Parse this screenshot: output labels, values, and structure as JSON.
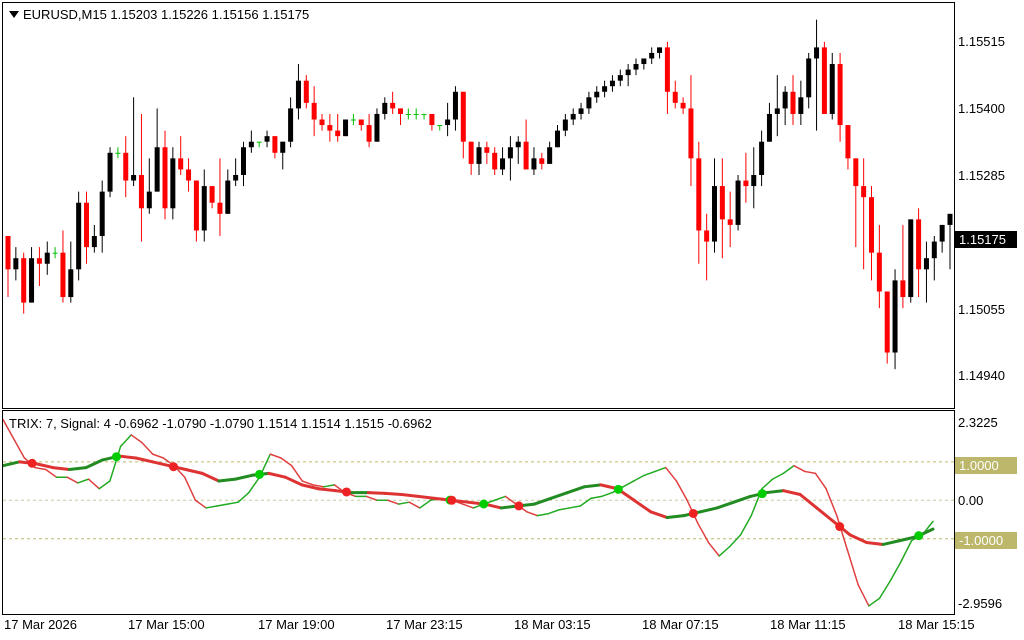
{
  "chart_window": {
    "symbol_info": "EURUSD,M15  1.15203 1.15226 1.15156 1.15175",
    "price_axis": [
      "1.15515",
      "1.15400",
      "1.15285",
      "1.15055",
      "1.14940"
    ],
    "current_price": "1.15175",
    "indicator_info": "TRIX: 7, Signal: 4 -0.6962 -1.0790 -1.0790 1.1514 1.1514 1.1515 -0.6962",
    "indicator_axis": {
      "top": "2.3225",
      "zero": "0.00",
      "bottom": "-2.9596"
    },
    "levels": [
      "1.0000",
      "-1.0000"
    ],
    "time_axis": [
      "17 Mar 2026",
      "17 Mar 15:00",
      "17 Mar 19:00",
      "17 Mar 23:15",
      "18 Mar 03:15",
      "18 Mar 07:15",
      "18 Mar 11:15",
      "18 Mar 15:15"
    ]
  },
  "colors": {
    "bull_candle": "#000000",
    "bear_candle": "#ff0000",
    "doji_candle": "#00c000",
    "trix_up": "#22aa22",
    "trix_down": "#e04040",
    "signal_up": "#228b22",
    "signal_down": "#dd3333",
    "cross_up_dot": "#00cc00",
    "cross_down_dot": "#ee2222",
    "level_line": "#bdb76b"
  },
  "chart_data": {
    "type": "candlestick",
    "symbol": "EURUSD",
    "timeframe": "M15",
    "ylim": [
      1.1485,
      1.1558
    ],
    "candles": [
      [
        1.1516,
        1.1516,
        1.1505,
        1.151
      ],
      [
        1.151,
        1.1514,
        1.1508,
        1.1512
      ],
      [
        1.1512,
        1.1513,
        1.1502,
        1.1504
      ],
      [
        1.1504,
        1.1514,
        1.1504,
        1.1512
      ],
      [
        1.1512,
        1.1514,
        1.1507,
        1.1511
      ],
      [
        1.1511,
        1.1515,
        1.1509,
        1.1513
      ],
      [
        1.1513,
        1.1514,
        1.1512,
        1.1513
      ],
      [
        1.1513,
        1.1517,
        1.1504,
        1.1505
      ],
      [
        1.1505,
        1.1515,
        1.1504,
        1.151
      ],
      [
        1.151,
        1.1524,
        1.1508,
        1.1522
      ],
      [
        1.1522,
        1.1524,
        1.1511,
        1.1514
      ],
      [
        1.1514,
        1.1518,
        1.1513,
        1.1516
      ],
      [
        1.1516,
        1.1526,
        1.1513,
        1.1524
      ],
      [
        1.1524,
        1.1532,
        1.1523,
        1.1531
      ],
      [
        1.1531,
        1.1532,
        1.153,
        1.1531
      ],
      [
        1.1531,
        1.1534,
        1.1523,
        1.1526
      ],
      [
        1.1526,
        1.1541,
        1.1525,
        1.1527
      ],
      [
        1.1527,
        1.1538,
        1.1515,
        1.1521
      ],
      [
        1.1521,
        1.153,
        1.152,
        1.1524
      ],
      [
        1.1524,
        1.1539,
        1.1524,
        1.1532
      ],
      [
        1.1532,
        1.1535,
        1.1519,
        1.1521
      ],
      [
        1.1521,
        1.1532,
        1.1519,
        1.153
      ],
      [
        1.153,
        1.1534,
        1.1527,
        1.1528
      ],
      [
        1.1528,
        1.153,
        1.1524,
        1.1526
      ],
      [
        1.1526,
        1.1526,
        1.1515,
        1.1517
      ],
      [
        1.1517,
        1.1528,
        1.1515,
        1.1525
      ],
      [
        1.1525,
        1.1525,
        1.1521,
        1.1522
      ],
      [
        1.1522,
        1.153,
        1.1516,
        1.152
      ],
      [
        1.152,
        1.1528,
        1.152,
        1.1526
      ],
      [
        1.1526,
        1.153,
        1.1525,
        1.1527
      ],
      [
        1.1527,
        1.1533,
        1.1525,
        1.1532
      ],
      [
        1.1532,
        1.1535,
        1.1531,
        1.1533
      ],
      [
        1.1533,
        1.1533,
        1.1532,
        1.1533
      ],
      [
        1.1533,
        1.1535,
        1.1532,
        1.1534
      ],
      [
        1.1534,
        1.1534,
        1.153,
        1.1531
      ],
      [
        1.1531,
        1.1533,
        1.1528,
        1.1533
      ],
      [
        1.1533,
        1.1541,
        1.1532,
        1.1539
      ],
      [
        1.1539,
        1.1547,
        1.1537,
        1.1544
      ],
      [
        1.1544,
        1.1545,
        1.1539,
        1.154
      ],
      [
        1.154,
        1.1543,
        1.1534,
        1.1537
      ],
      [
        1.1537,
        1.1538,
        1.1535,
        1.1536
      ],
      [
        1.1536,
        1.1538,
        1.1533,
        1.1535
      ],
      [
        1.1535,
        1.1538,
        1.1533,
        1.1534
      ],
      [
        1.1534,
        1.1537,
        1.1534,
        1.1537
      ],
      [
        1.1537,
        1.1538,
        1.1536,
        1.1537
      ],
      [
        1.1537,
        1.1537,
        1.1535,
        1.1536
      ],
      [
        1.1536,
        1.1538,
        1.1532,
        1.1533
      ],
      [
        1.1533,
        1.1539,
        1.1533,
        1.1538
      ],
      [
        1.1538,
        1.1541,
        1.1537,
        1.154
      ],
      [
        1.154,
        1.1542,
        1.1538,
        1.1539
      ],
      [
        1.1539,
        1.1539,
        1.1536,
        1.1538
      ],
      [
        1.1538,
        1.1539,
        1.1537,
        1.1538
      ],
      [
        1.1538,
        1.1539,
        1.1537,
        1.1538
      ],
      [
        1.1538,
        1.1538,
        1.1537,
        1.1538
      ],
      [
        1.1538,
        1.1538,
        1.1535,
        1.1536
      ],
      [
        1.1536,
        1.1536,
        1.1535,
        1.1536
      ],
      [
        1.1536,
        1.154,
        1.1534,
        1.1537
      ],
      [
        1.1537,
        1.1543,
        1.1535,
        1.1542
      ],
      [
        1.1542,
        1.1542,
        1.153,
        1.1533
      ],
      [
        1.1533,
        1.1533,
        1.1527,
        1.1529
      ],
      [
        1.1529,
        1.1533,
        1.1527,
        1.1532
      ],
      [
        1.1532,
        1.1533,
        1.1529,
        1.1531
      ],
      [
        1.1531,
        1.1532,
        1.1527,
        1.1528
      ],
      [
        1.1528,
        1.1532,
        1.1527,
        1.153
      ],
      [
        1.153,
        1.1534,
        1.1526,
        1.1532
      ],
      [
        1.1532,
        1.1534,
        1.1529,
        1.1533
      ],
      [
        1.1533,
        1.1537,
        1.1528,
        1.1528
      ],
      [
        1.1528,
        1.1532,
        1.1527,
        1.153
      ],
      [
        1.153,
        1.1531,
        1.1528,
        1.1529
      ],
      [
        1.1529,
        1.1533,
        1.1529,
        1.1532
      ],
      [
        1.1532,
        1.1536,
        1.1532,
        1.1535
      ],
      [
        1.1535,
        1.1538,
        1.1534,
        1.1537
      ],
      [
        1.1537,
        1.1539,
        1.1536,
        1.1538
      ],
      [
        1.1538,
        1.154,
        1.1537,
        1.1539
      ],
      [
        1.1539,
        1.1542,
        1.1538,
        1.1541
      ],
      [
        1.1541,
        1.1543,
        1.154,
        1.1542
      ],
      [
        1.1542,
        1.1544,
        1.1541,
        1.1543
      ],
      [
        1.1543,
        1.1545,
        1.1542,
        1.1544
      ],
      [
        1.1544,
        1.1546,
        1.1543,
        1.1545
      ],
      [
        1.1545,
        1.1547,
        1.1543,
        1.1546
      ],
      [
        1.1546,
        1.1548,
        1.1545,
        1.1547
      ],
      [
        1.1547,
        1.1548,
        1.1546,
        1.1548
      ],
      [
        1.1548,
        1.155,
        1.1547,
        1.1549
      ],
      [
        1.1549,
        1.155,
        1.1548,
        1.155
      ],
      [
        1.155,
        1.1551,
        1.1538,
        1.1542
      ],
      [
        1.1542,
        1.1544,
        1.1539,
        1.154
      ],
      [
        1.154,
        1.1541,
        1.1538,
        1.1539
      ],
      [
        1.1539,
        1.1545,
        1.1525,
        1.153
      ],
      [
        1.153,
        1.1533,
        1.1511,
        1.1517
      ],
      [
        1.1517,
        1.152,
        1.1508,
        1.1515
      ],
      [
        1.1515,
        1.153,
        1.1513,
        1.1525
      ],
      [
        1.1525,
        1.153,
        1.1512,
        1.1519
      ],
      [
        1.1519,
        1.1524,
        1.1514,
        1.1518
      ],
      [
        1.1518,
        1.1527,
        1.1517,
        1.1526
      ],
      [
        1.1526,
        1.1531,
        1.1522,
        1.1525
      ],
      [
        1.1525,
        1.1532,
        1.1521,
        1.1527
      ],
      [
        1.1527,
        1.1535,
        1.1525,
        1.1533
      ],
      [
        1.1533,
        1.154,
        1.1533,
        1.1538
      ],
      [
        1.1538,
        1.1545,
        1.1534,
        1.1539
      ],
      [
        1.1539,
        1.1543,
        1.1536,
        1.1542
      ],
      [
        1.1542,
        1.1545,
        1.1536,
        1.1538
      ],
      [
        1.1538,
        1.1544,
        1.1536,
        1.1541
      ],
      [
        1.1541,
        1.1549,
        1.1539,
        1.1548
      ],
      [
        1.1548,
        1.1555,
        1.1535,
        1.155
      ],
      [
        1.155,
        1.1551,
        1.1538,
        1.1538
      ],
      [
        1.1538,
        1.1549,
        1.1537,
        1.1547
      ],
      [
        1.1547,
        1.1549,
        1.1533,
        1.1536
      ],
      [
        1.1536,
        1.1536,
        1.1528,
        1.153
      ],
      [
        1.153,
        1.153,
        1.1514,
        1.1525
      ],
      [
        1.1525,
        1.153,
        1.151,
        1.1523
      ],
      [
        1.1523,
        1.1525,
        1.1508,
        1.1513
      ],
      [
        1.1513,
        1.1518,
        1.1503,
        1.1506
      ],
      [
        1.1506,
        1.1506,
        1.1493,
        1.1495
      ],
      [
        1.1495,
        1.151,
        1.1492,
        1.1508
      ],
      [
        1.1508,
        1.1518,
        1.1503,
        1.1505
      ],
      [
        1.1505,
        1.1519,
        1.1504,
        1.1519
      ],
      [
        1.1519,
        1.1521,
        1.1505,
        1.151
      ],
      [
        1.151,
        1.1515,
        1.1504,
        1.1512
      ],
      [
        1.1512,
        1.1516,
        1.1508,
        1.1515
      ],
      [
        1.1515,
        1.1518,
        1.1513,
        1.1518
      ],
      [
        1.1518,
        1.152,
        1.151,
        1.152
      ],
      [
        1.152,
        1.1523,
        1.1516,
        1.1517
      ]
    ],
    "indicator": {
      "name": "TRIX",
      "period": 7,
      "signal_period": 4,
      "ylim": [
        -2.9596,
        2.3225
      ],
      "levels": [
        1.0,
        -1.0
      ],
      "trix": [
        2.1,
        1.6,
        1.1,
        0.85,
        0.8,
        0.6,
        0.6,
        0.45,
        0.55,
        0.3,
        0.5,
        1.4,
        1.7,
        1.5,
        1.2,
        1.1,
        0.9,
        0.6,
        0.0,
        -0.2,
        -0.15,
        -0.1,
        -0.05,
        0.2,
        0.6,
        1.2,
        1.1,
        0.9,
        0.5,
        0.4,
        0.35,
        0.4,
        0.2,
        0.1,
        0.1,
        0.0,
        0.0,
        -0.1,
        -0.05,
        -0.2,
        0.0,
        0.05,
        0.0,
        -0.1,
        -0.2,
        -0.1,
        0.0,
        0.1,
        -0.1,
        -0.3,
        -0.4,
        -0.35,
        -0.25,
        -0.2,
        -0.15,
        0.05,
        0.1,
        0.2,
        0.35,
        0.5,
        0.65,
        0.75,
        0.85,
        0.5,
        0.0,
        -0.6,
        -1.1,
        -1.45,
        -1.2,
        -0.9,
        -0.4,
        0.3,
        0.55,
        0.7,
        0.9,
        0.75,
        0.7,
        0.3,
        -0.4,
        -1.3,
        -2.2,
        -2.75,
        -2.55,
        -2.1,
        -1.6,
        -1.05,
        -0.9,
        -0.55
      ],
      "signal": [
        0.9,
        1.0,
        0.95,
        0.85,
        0.8,
        0.85,
        1.05,
        1.15,
        1.1,
        1.0,
        0.9,
        0.8,
        0.7,
        0.5,
        0.55,
        0.65,
        0.7,
        0.6,
        0.4,
        0.3,
        0.25,
        0.2,
        0.2,
        0.18,
        0.15,
        0.1,
        0.05,
        0.0,
        -0.05,
        -0.1,
        -0.2,
        -0.15,
        -0.1,
        0.05,
        0.2,
        0.35,
        0.4,
        0.3,
        0.0,
        -0.3,
        -0.45,
        -0.4,
        -0.3,
        -0.2,
        -0.05,
        0.1,
        0.2,
        0.25,
        0.15,
        -0.2,
        -0.55,
        -0.9,
        -1.1,
        -1.15,
        -1.05,
        -0.95,
        -0.75
      ]
    }
  }
}
